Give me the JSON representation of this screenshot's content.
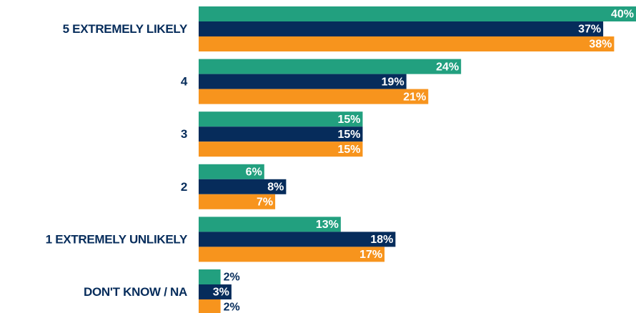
{
  "chart_data": {
    "type": "hbar",
    "categories": [
      "5 EXTREMELY LIKELY",
      "4",
      "3",
      "2",
      "1 EXTREMELY UNLIKELY",
      "DON'T KNOW / NA"
    ],
    "series": [
      {
        "color": "#22a07f",
        "values": [
          40,
          24,
          15,
          6,
          13,
          2
        ],
        "value_labels": [
          "40%",
          "24%",
          "15%",
          "6%",
          "13%",
          "2%"
        ]
      },
      {
        "color": "#062c5b",
        "values": [
          37,
          19,
          15,
          8,
          18,
          3
        ],
        "value_labels": [
          "37%",
          "19%",
          "15%",
          "8%",
          "18%",
          "3%"
        ]
      },
      {
        "color": "#f7941d",
        "values": [
          38,
          21,
          15,
          7,
          17,
          2
        ],
        "value_labels": [
          "38%",
          "21%",
          "15%",
          "7%",
          "17%",
          "2%"
        ]
      }
    ],
    "xlim": [
      0,
      40
    ]
  }
}
